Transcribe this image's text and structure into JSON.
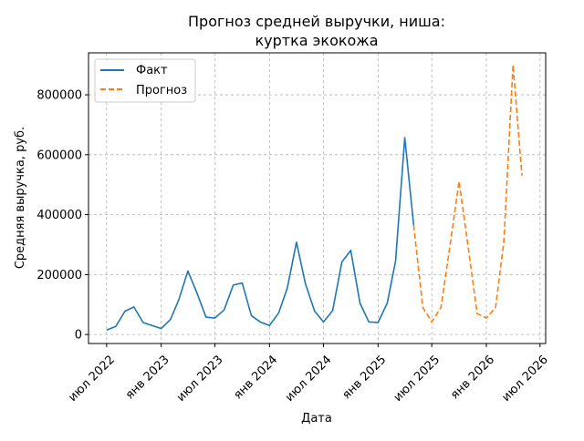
{
  "chart_data": {
    "type": "line",
    "title": "Прогноз средней выручки, ниша:\nкуртка экокожа",
    "xlabel": "Дата",
    "ylabel": "Средняя выручка, руб.",
    "xlim": [
      "2022-05-01",
      "2026-07-20"
    ],
    "ylim": [
      -30000,
      940000
    ],
    "grid": true,
    "legend": "top-left",
    "x_ticks": [
      {
        "date": "2022-07-01",
        "label": "июл 2022"
      },
      {
        "date": "2023-01-01",
        "label": "янв 2023"
      },
      {
        "date": "2023-07-01",
        "label": "июл 2023"
      },
      {
        "date": "2024-01-01",
        "label": "янв 2024"
      },
      {
        "date": "2024-07-01",
        "label": "июл 2024"
      },
      {
        "date": "2025-01-01",
        "label": "янв 2025"
      },
      {
        "date": "2025-07-01",
        "label": "июл 2025"
      },
      {
        "date": "2026-01-01",
        "label": "янв 2026"
      },
      {
        "date": "2026-07-01",
        "label": "июл 2026"
      }
    ],
    "y_ticks": [
      {
        "value": 0,
        "label": "0"
      },
      {
        "value": 200000,
        "label": "200000"
      },
      {
        "value": 400000,
        "label": "400000"
      },
      {
        "value": 600000,
        "label": "600000"
      },
      {
        "value": 800000,
        "label": "800000"
      }
    ],
    "series": [
      {
        "name": "Факт",
        "color": "#1f77b4",
        "style": "solid",
        "points": [
          {
            "x": "2022-07-01",
            "y": 15000
          },
          {
            "x": "2022-08-01",
            "y": 27000
          },
          {
            "x": "2022-09-01",
            "y": 78000
          },
          {
            "x": "2022-10-01",
            "y": 92000
          },
          {
            "x": "2022-11-01",
            "y": 40000
          },
          {
            "x": "2022-12-01",
            "y": 30000
          },
          {
            "x": "2023-01-01",
            "y": 20000
          },
          {
            "x": "2023-02-01",
            "y": 50000
          },
          {
            "x": "2023-03-01",
            "y": 115000
          },
          {
            "x": "2023-04-01",
            "y": 212000
          },
          {
            "x": "2023-05-01",
            "y": 140000
          },
          {
            "x": "2023-06-01",
            "y": 58000
          },
          {
            "x": "2023-07-01",
            "y": 55000
          },
          {
            "x": "2023-08-01",
            "y": 82000
          },
          {
            "x": "2023-09-01",
            "y": 165000
          },
          {
            "x": "2023-10-01",
            "y": 172000
          },
          {
            "x": "2023-11-01",
            "y": 63000
          },
          {
            "x": "2023-12-01",
            "y": 42000
          },
          {
            "x": "2024-01-01",
            "y": 30000
          },
          {
            "x": "2024-02-01",
            "y": 72000
          },
          {
            "x": "2024-03-01",
            "y": 155000
          },
          {
            "x": "2024-04-01",
            "y": 308000
          },
          {
            "x": "2024-05-01",
            "y": 170000
          },
          {
            "x": "2024-06-01",
            "y": 78000
          },
          {
            "x": "2024-07-01",
            "y": 42000
          },
          {
            "x": "2024-08-01",
            "y": 80000
          },
          {
            "x": "2024-09-01",
            "y": 242000
          },
          {
            "x": "2024-10-01",
            "y": 281000
          },
          {
            "x": "2024-11-01",
            "y": 105000
          },
          {
            "x": "2024-12-01",
            "y": 42000
          },
          {
            "x": "2025-01-01",
            "y": 40000
          },
          {
            "x": "2025-02-01",
            "y": 105000
          },
          {
            "x": "2025-03-01",
            "y": 245000
          },
          {
            "x": "2025-04-01",
            "y": 657000
          },
          {
            "x": "2025-05-01",
            "y": 365000
          }
        ]
      },
      {
        "name": "Прогноз",
        "color": "#ff7f0e",
        "style": "dashed",
        "points": [
          {
            "x": "2025-05-01",
            "y": 365000
          },
          {
            "x": "2025-06-01",
            "y": 90000
          },
          {
            "x": "2025-07-01",
            "y": 42000
          },
          {
            "x": "2025-08-01",
            "y": 90000
          },
          {
            "x": "2025-09-01",
            "y": 300000
          },
          {
            "x": "2025-10-01",
            "y": 512000
          },
          {
            "x": "2025-11-01",
            "y": 290000
          },
          {
            "x": "2025-12-01",
            "y": 70000
          },
          {
            "x": "2026-01-01",
            "y": 55000
          },
          {
            "x": "2026-02-01",
            "y": 90000
          },
          {
            "x": "2026-03-01",
            "y": 310000
          },
          {
            "x": "2026-04-01",
            "y": 900000
          },
          {
            "x": "2026-05-01",
            "y": 530000
          }
        ]
      }
    ]
  }
}
